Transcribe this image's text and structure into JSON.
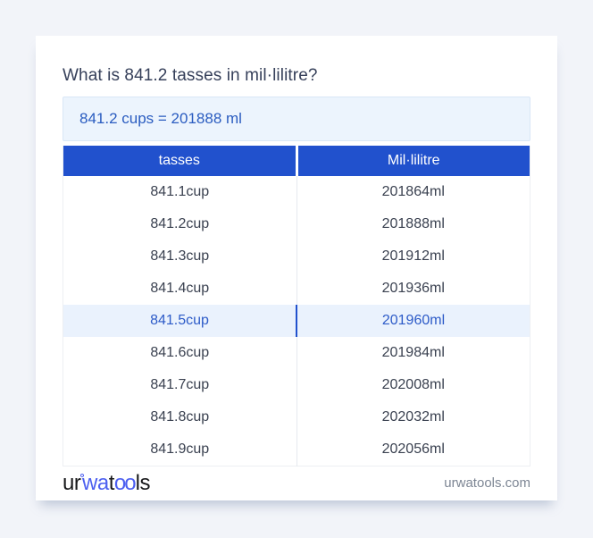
{
  "page": {
    "title": "What is 841.2 tasses in mil·lilitre?",
    "answer": "841.2 cups = 201888 ml"
  },
  "table": {
    "headers": [
      "tasses",
      "Mil·lilitre"
    ],
    "rows": [
      {
        "tasses": "841.1cup",
        "ml": "201864ml",
        "highlighted": false
      },
      {
        "tasses": "841.2cup",
        "ml": "201888ml",
        "highlighted": false
      },
      {
        "tasses": "841.3cup",
        "ml": "201912ml",
        "highlighted": false
      },
      {
        "tasses": "841.4cup",
        "ml": "201936ml",
        "highlighted": false
      },
      {
        "tasses": "841.5cup",
        "ml": "201960ml",
        "highlighted": true
      },
      {
        "tasses": "841.6cup",
        "ml": "201984ml",
        "highlighted": false
      },
      {
        "tasses": "841.7cup",
        "ml": "202008ml",
        "highlighted": false
      },
      {
        "tasses": "841.8cup",
        "ml": "202032ml",
        "highlighted": false
      },
      {
        "tasses": "841.9cup",
        "ml": "202056ml",
        "highlighted": false
      }
    ]
  },
  "footer": {
    "logo_ur": "ur",
    "logo_ring": "°",
    "logo_wa": "wa",
    "logo_t": "t",
    "logo_oo": "oo",
    "logo_ls": "ls",
    "domain": "urwatools.com"
  },
  "colors": {
    "page_bg": "#f2f4f9",
    "card_bg": "#ffffff",
    "accent_blue": "#2151cd",
    "header_text": "#ffffff",
    "answer_bg": "#ecf4fd",
    "answer_border": "#d9e7f6",
    "answer_text": "#2a5cc0",
    "highlight_bg": "#eaf2fd",
    "highlight_text": "#2d5bc8",
    "body_text": "#3a4150",
    "title_text": "#36405a",
    "divider": "#e6e9ee",
    "domain_text": "#7d8694",
    "logo_dark": "#17181a",
    "logo_blue": "#4c5ff0"
  }
}
